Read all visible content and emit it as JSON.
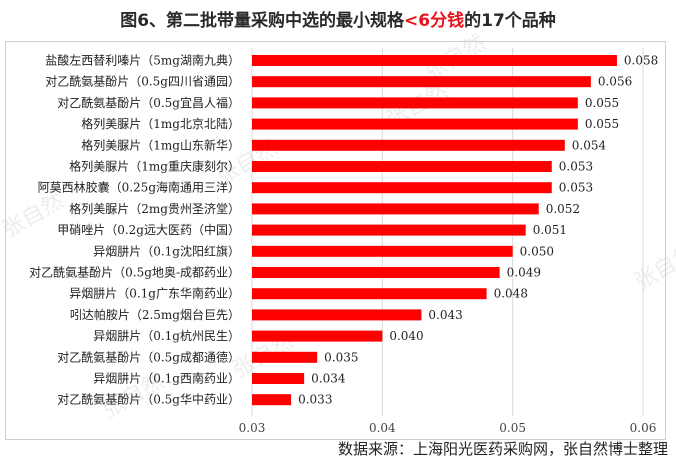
{
  "title": {
    "prefix": "图6、第二批带量采购中选的最小规格",
    "highlight": "<6分钱",
    "suffix": "的17个品种"
  },
  "source": "数据来源：上海阳光医药采购网，张自然博士整理",
  "watermark": "张自然",
  "colors": {
    "bar": "#ff0000",
    "highlight": "#e8141c",
    "grid": "#d9d9d9"
  },
  "chart_data": {
    "type": "bar",
    "orientation": "horizontal",
    "categories": [
      "盐酸左西替利嗪片（5mg湖南九典）",
      "对乙酰氨基酚片（0.5g四川省通园）",
      "对乙酰氨基酚片（0.5g宜昌人福）",
      "格列美脲片（1mg北京北陆）",
      "格列美脲片（1mg山东新华）",
      "格列美脲片（1mg重庆康刻尔）",
      "阿莫西林胶囊（0.25g海南通用三洋）",
      "格列美脲片（2mg贵州圣济堂）",
      "甲硝唑片（0.2g远大医药（中国）",
      "异烟肼片（0.1g沈阳红旗）",
      "对乙酰氨基酚片（0.5g地奥-成都药业）",
      "异烟肼片（0.1g广东华南药业）",
      "吲达帕胺片（2.5mg烟台巨先）",
      "异烟肼片（0.1g杭州民生）",
      "对乙酰氨基酚片（0.5g成都通德）",
      "异烟肼片（0.1g西南药业）",
      "对乙酰氨基酚片（0.5g华中药业）"
    ],
    "values": [
      0.058,
      0.056,
      0.055,
      0.055,
      0.054,
      0.053,
      0.053,
      0.052,
      0.051,
      0.05,
      0.049,
      0.048,
      0.043,
      0.04,
      0.035,
      0.034,
      0.033
    ],
    "value_labels": [
      "0.058",
      "0.056",
      "0.055",
      "0.055",
      "0.054",
      "0.053",
      "0.053",
      "0.052",
      "0.051",
      "0.050",
      "0.049",
      "0.048",
      "0.043",
      "0.040",
      "0.035",
      "0.034",
      "0.033"
    ],
    "xlim": [
      0.03,
      0.06
    ],
    "xticks": [
      0.03,
      0.04,
      0.05,
      0.06
    ],
    "xtick_labels": [
      "0.03",
      "0.04",
      "0.05",
      "0.06"
    ],
    "grid": "vertical"
  }
}
